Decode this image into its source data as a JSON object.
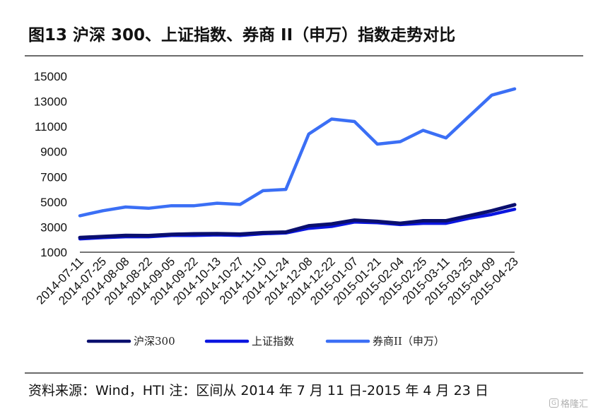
{
  "figure": {
    "title": "图13 沪深 300、上证指数、券商 II（申万）指数走势对比",
    "source": "资料来源：Wind，HTI 注：区间从 2014 年 7 月 11 日-2015 年 4 月 23 日",
    "watermark": "格隆汇"
  },
  "chart_data": {
    "type": "line",
    "title": "",
    "xlabel": "",
    "ylabel": "",
    "ylim": [
      1000,
      15000
    ],
    "yticks": [
      1000,
      3000,
      5000,
      7000,
      9000,
      11000,
      13000,
      15000
    ],
    "xticks": [
      "2014-07-11",
      "2014-07-25",
      "2014-08-08",
      "2014-08-22",
      "2014-09-05",
      "2014-09-22",
      "2014-10-13",
      "2014-10-27",
      "2014-11-10",
      "2014-11-24",
      "2014-12-08",
      "2014-12-22",
      "2015-01-07",
      "2015-01-21",
      "2015-02-04",
      "2015-02-25",
      "2015-03-11",
      "2015-03-25",
      "2015-04-09",
      "2015-04-23"
    ],
    "grid": false,
    "legend_position": "bottom",
    "series": [
      {
        "name": "沪深300",
        "color": "#0a0f6e",
        "x": [
          "2014-07-11",
          "2014-07-25",
          "2014-08-08",
          "2014-08-22",
          "2014-09-05",
          "2014-09-22",
          "2014-10-13",
          "2014-10-27",
          "2014-11-10",
          "2014-11-24",
          "2014-12-08",
          "2014-12-22",
          "2015-01-07",
          "2015-01-21",
          "2015-02-04",
          "2015-02-25",
          "2015-03-11",
          "2015-03-25",
          "2015-04-09",
          "2015-04-23"
        ],
        "values": [
          2170,
          2250,
          2330,
          2320,
          2420,
          2460,
          2480,
          2440,
          2550,
          2600,
          3100,
          3250,
          3550,
          3450,
          3300,
          3500,
          3500,
          3900,
          4300,
          4780
        ]
      },
      {
        "name": "上证指数",
        "color": "#0b16e0",
        "x": [
          "2014-07-11",
          "2014-07-25",
          "2014-08-08",
          "2014-08-22",
          "2014-09-05",
          "2014-09-22",
          "2014-10-13",
          "2014-10-27",
          "2014-11-10",
          "2014-11-24",
          "2014-12-08",
          "2014-12-22",
          "2015-01-07",
          "2015-01-21",
          "2015-02-04",
          "2015-02-25",
          "2015-03-11",
          "2015-03-25",
          "2015-04-09",
          "2015-04-23"
        ],
        "values": [
          2060,
          2160,
          2230,
          2230,
          2330,
          2340,
          2380,
          2330,
          2470,
          2530,
          2900,
          3050,
          3400,
          3350,
          3200,
          3300,
          3300,
          3700,
          4000,
          4420
        ]
      },
      {
        "name": "券商II（申万）",
        "color": "#3b6ff5",
        "x": [
          "2014-07-11",
          "2014-07-25",
          "2014-08-08",
          "2014-08-22",
          "2014-09-05",
          "2014-09-22",
          "2014-10-13",
          "2014-10-27",
          "2014-11-10",
          "2014-11-24",
          "2014-12-08",
          "2014-12-22",
          "2015-01-07",
          "2015-01-21",
          "2015-02-04",
          "2015-02-25",
          "2015-03-11",
          "2015-03-25",
          "2015-04-09",
          "2015-04-23"
        ],
        "values": [
          3900,
          4300,
          4600,
          4500,
          4700,
          4700,
          4900,
          4800,
          5900,
          6000,
          10400,
          11600,
          11400,
          9600,
          9800,
          10700,
          10100,
          11800,
          13500,
          14000
        ]
      }
    ],
    "legend": [
      {
        "name": "沪深300"
      },
      {
        "name": "上证指数"
      },
      {
        "name": "券商II（申万）"
      }
    ]
  }
}
